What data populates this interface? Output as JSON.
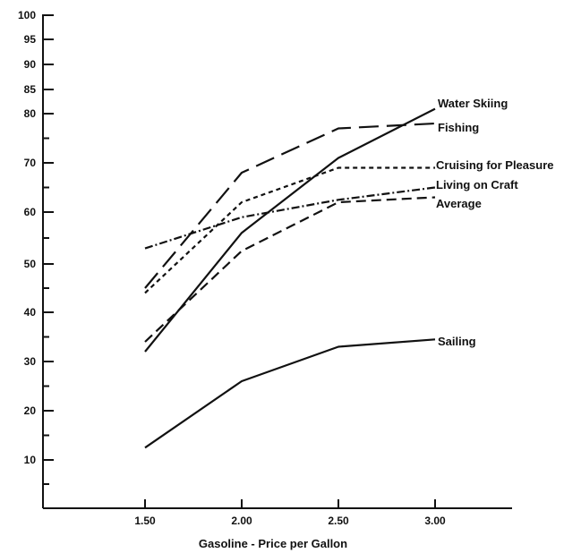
{
  "chart_data": {
    "type": "line",
    "title": "",
    "xlabel": "Gasoline - Price per Gallon",
    "ylabel": "",
    "x": [
      1.5,
      2.0,
      2.5,
      3.0
    ],
    "x_tick_labels": [
      "1.50",
      "2.00",
      "2.50",
      "3.00"
    ],
    "y_tick_values": [
      10,
      20,
      30,
      40,
      50,
      60,
      70,
      80,
      85,
      90,
      95,
      100
    ],
    "y_tick_labels": [
      "10",
      "20",
      "30",
      "40",
      "50",
      "60",
      "70",
      "80",
      "85",
      "90",
      "95",
      "100"
    ],
    "ylim": [
      0,
      100
    ],
    "grid": false,
    "legend": "labels at line ends (right)",
    "series": [
      {
        "name": "Water Skiing",
        "dash": "solid",
        "values": [
          32,
          56,
          71,
          81
        ]
      },
      {
        "name": "Fishing",
        "dash": "long-dash",
        "values": [
          45,
          68,
          77,
          78
        ]
      },
      {
        "name": "Cruising for Pleasure",
        "dash": "short-dash",
        "values": [
          44,
          62,
          69,
          69
        ]
      },
      {
        "name": "Living on Craft",
        "dash": "dash-dot",
        "values": [
          53,
          59,
          62.5,
          65
        ]
      },
      {
        "name": "Average",
        "dash": "medium-dash",
        "values": [
          34,
          52.5,
          62,
          63
        ]
      },
      {
        "name": "Sailing",
        "dash": "solid",
        "values": [
          12.5,
          26,
          33,
          34.5
        ]
      }
    ]
  }
}
